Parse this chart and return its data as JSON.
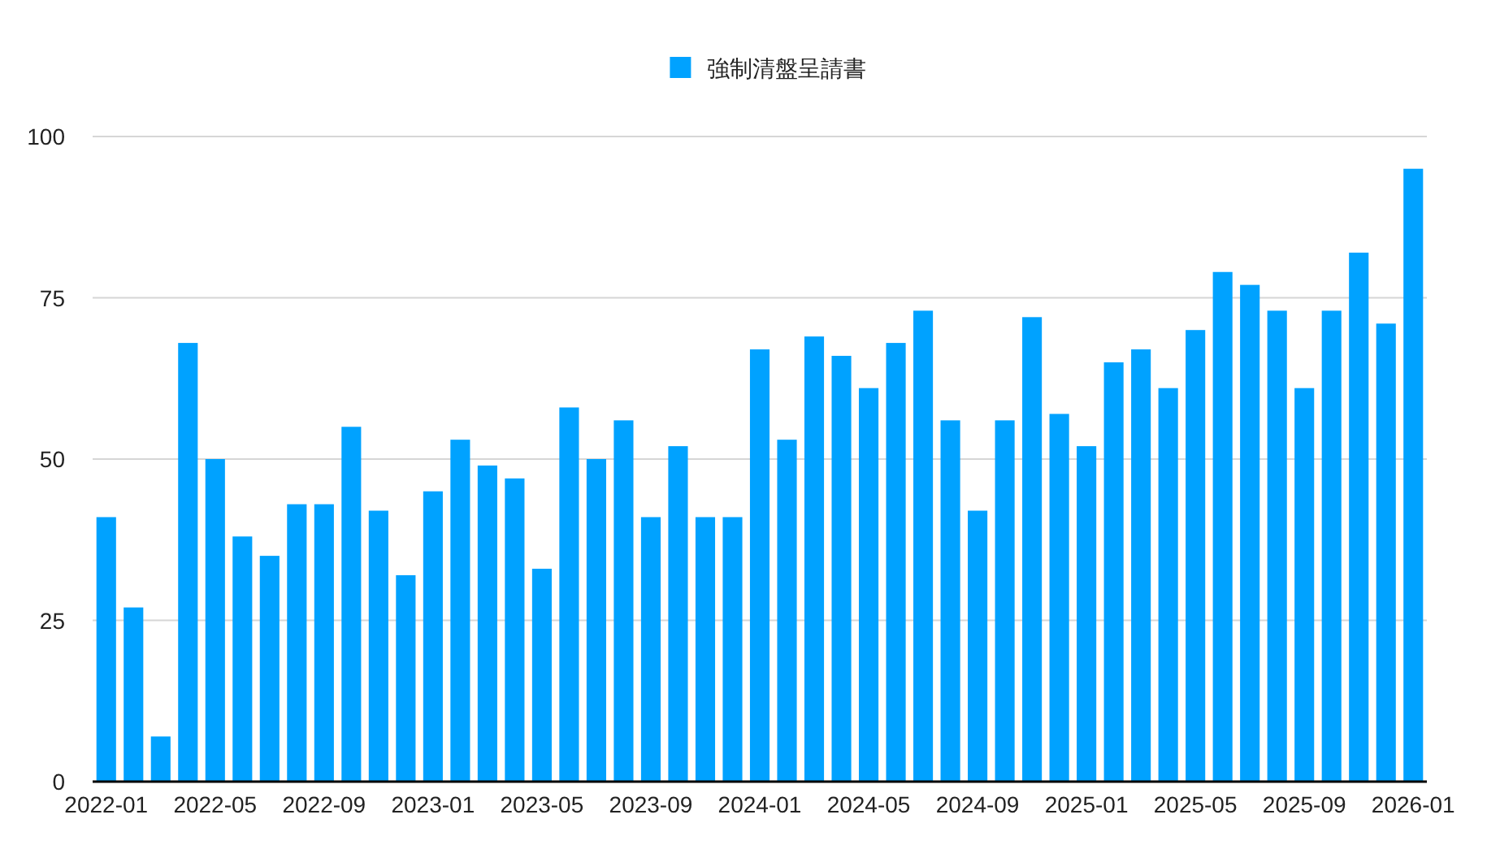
{
  "chart_data": {
    "type": "bar",
    "categories": [
      "2022-01",
      null,
      null,
      null,
      "2022-05",
      null,
      null,
      null,
      "2022-09",
      null,
      null,
      null,
      "2023-01",
      null,
      null,
      null,
      "2023-05",
      null,
      null,
      null,
      "2023-09",
      null,
      null,
      null,
      "2024-01",
      null,
      null,
      null,
      "2024-05",
      null,
      null,
      null,
      "2024-09",
      null,
      null,
      null,
      "2025-01",
      null,
      null,
      null,
      "2025-05",
      null,
      null,
      null,
      "2025-09",
      null,
      null,
      null,
      "2026-01"
    ],
    "series": [
      {
        "name": "強制清盤呈請書",
        "color": "#00a2ff",
        "values": [
          41,
          27,
          7,
          68,
          50,
          38,
          35,
          43,
          43,
          55,
          42,
          32,
          45,
          53,
          49,
          47,
          33,
          58,
          50,
          56,
          41,
          52,
          41,
          41,
          67,
          53,
          69,
          66,
          61,
          68,
          73,
          56,
          42,
          56,
          72,
          57,
          52,
          65,
          67,
          61,
          70,
          79,
          77,
          73,
          61,
          73,
          82,
          71,
          95
        ]
      }
    ],
    "ylim": [
      0,
      100
    ],
    "yticks": [
      0,
      25,
      50,
      75,
      100
    ],
    "grid": "y",
    "legend": "top"
  }
}
